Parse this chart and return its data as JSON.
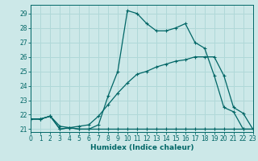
{
  "title": "",
  "xlabel": "Humidex (Indice chaleur)",
  "ylabel": "",
  "background_color": "#cce8e8",
  "line_color": "#006666",
  "grid_color": "#b0d8d8",
  "series": [
    {
      "x": [
        0,
        1,
        2,
        3,
        4,
        5,
        6,
        7,
        8,
        9,
        10,
        11,
        12,
        13,
        14,
        15,
        16,
        17,
        18,
        19,
        20,
        21,
        22,
        23
      ],
      "y": [
        21.7,
        21.7,
        21.9,
        21.0,
        21.1,
        21.0,
        21.0,
        21.0,
        21.0,
        21.0,
        21.0,
        21.0,
        21.0,
        21.0,
        21.0,
        21.0,
        21.0,
        21.0,
        21.0,
        21.0,
        21.0,
        21.0,
        21.0,
        21.0
      ]
    },
    {
      "x": [
        0,
        1,
        2,
        3,
        4,
        5,
        6,
        7,
        8,
        9,
        10,
        11,
        12,
        13,
        14,
        15,
        16,
        17,
        18,
        19,
        20,
        21,
        22,
        23
      ],
      "y": [
        21.7,
        21.7,
        21.9,
        21.2,
        21.1,
        21.2,
        21.3,
        21.9,
        22.7,
        23.5,
        24.2,
        24.8,
        25.0,
        25.3,
        25.5,
        25.7,
        25.8,
        26.0,
        26.0,
        26.0,
        24.7,
        22.5,
        22.1,
        21.0
      ]
    },
    {
      "x": [
        0,
        1,
        2,
        3,
        4,
        5,
        6,
        7,
        8,
        9,
        10,
        11,
        12,
        13,
        14,
        15,
        16,
        17,
        18,
        19,
        20,
        21,
        22,
        23
      ],
      "y": [
        21.7,
        21.7,
        21.9,
        21.0,
        21.1,
        21.0,
        21.0,
        21.3,
        23.3,
        25.0,
        29.2,
        29.0,
        28.3,
        27.8,
        27.8,
        28.0,
        28.3,
        27.0,
        26.6,
        24.7,
        22.5,
        22.2,
        21.0,
        21.0
      ]
    }
  ],
  "xlim": [
    0,
    23
  ],
  "ylim": [
    20.8,
    29.6
  ],
  "yticks": [
    21,
    22,
    23,
    24,
    25,
    26,
    27,
    28,
    29
  ],
  "xticks": [
    0,
    1,
    2,
    3,
    4,
    5,
    6,
    7,
    8,
    9,
    10,
    11,
    12,
    13,
    14,
    15,
    16,
    17,
    18,
    19,
    20,
    21,
    22,
    23
  ]
}
